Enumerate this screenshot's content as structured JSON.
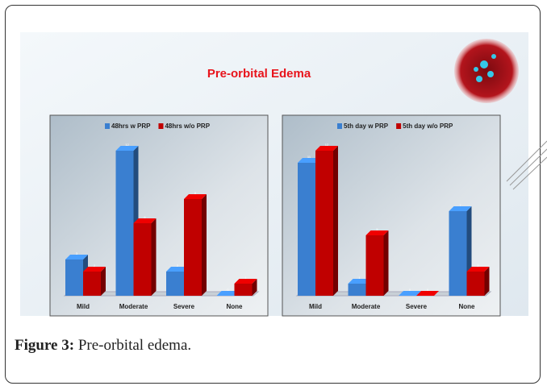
{
  "slide_title": "Pre-orbital Edema",
  "chart_data": [
    {
      "type": "bar",
      "categories": [
        "Mild",
        "Moderate",
        "Severe",
        "None"
      ],
      "series": [
        {
          "name": "48hrs w PRP",
          "color": "#3a7fd0",
          "values": [
            3,
            12,
            2,
            0
          ]
        },
        {
          "name": "48hrs w/o PRP",
          "color": "#c00000",
          "values": [
            2,
            6,
            8,
            1
          ]
        }
      ]
    },
    {
      "type": "bar",
      "categories": [
        "Mild",
        "Moderate",
        "Severe",
        "None"
      ],
      "series": [
        {
          "name": "5th day w PRP",
          "color": "#3a7fd0",
          "values": [
            11,
            1,
            0,
            7
          ]
        },
        {
          "name": "5th day w/o PRP",
          "color": "#c00000",
          "values": [
            12,
            5,
            0,
            2
          ]
        }
      ]
    }
  ],
  "caption": {
    "label": "Figure 3:",
    "text": "Pre-orbital edema."
  }
}
